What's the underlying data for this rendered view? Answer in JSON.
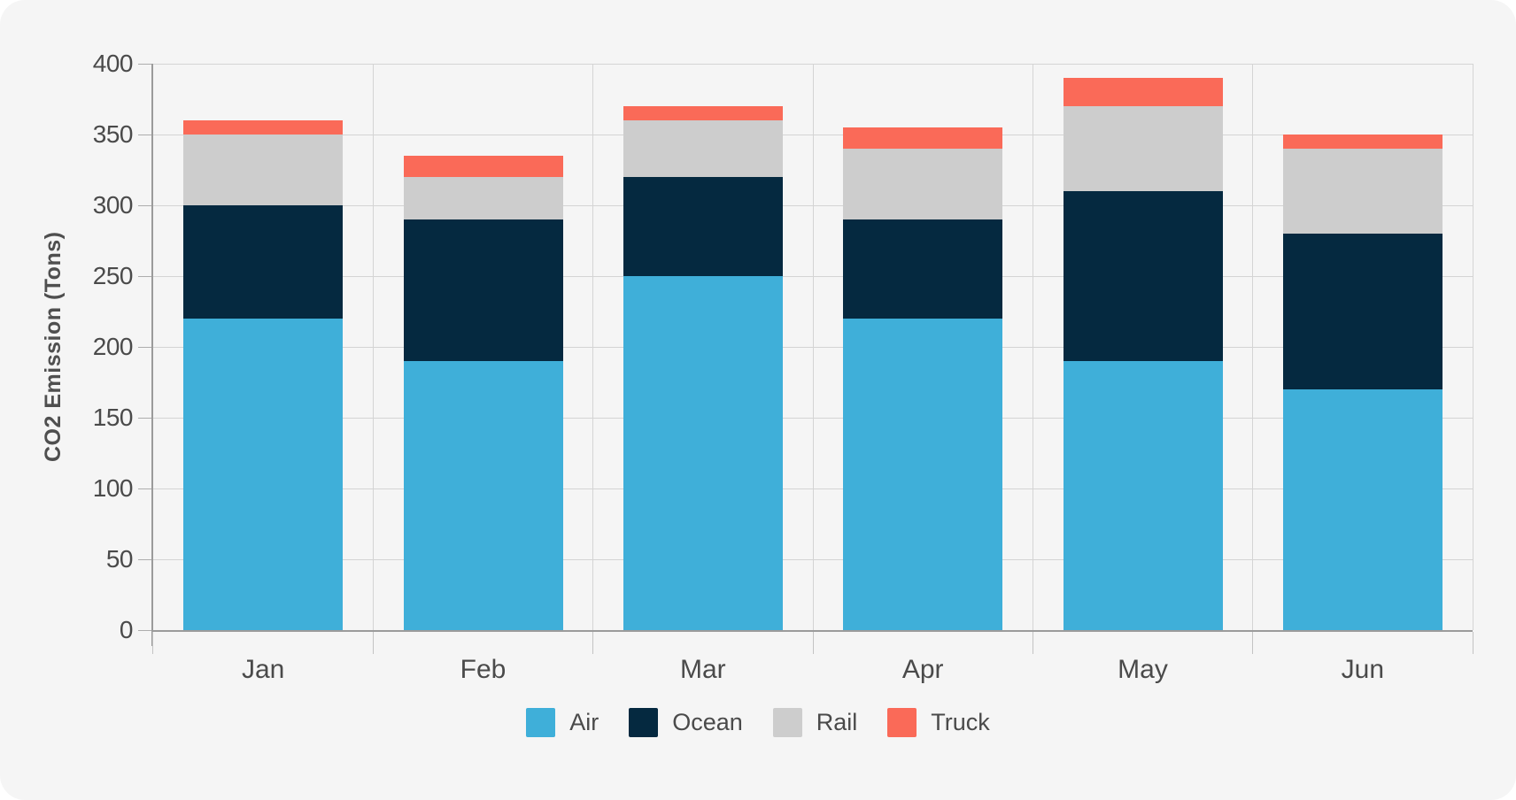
{
  "page": {
    "background": "#ffffff",
    "panel_background": "#f5f5f5",
    "gridline_color": "#d4d4d4",
    "axis_color": "#9b9b9b",
    "text_color": "#4a4a4a"
  },
  "chart_data": {
    "type": "bar",
    "stacked": true,
    "title": "",
    "xlabel": "",
    "ylabel": "CO2 Emission (Tons)",
    "categories": [
      "Jan",
      "Feb",
      "Mar",
      "Apr",
      "May",
      "Jun"
    ],
    "series": [
      {
        "name": "Air",
        "color": "#3fafd9",
        "values": [
          220,
          190,
          250,
          220,
          190,
          170
        ]
      },
      {
        "name": "Ocean",
        "color": "#052940",
        "values": [
          80,
          100,
          70,
          70,
          120,
          110
        ]
      },
      {
        "name": "Rail",
        "color": "#cdcdcd",
        "values": [
          50,
          30,
          40,
          50,
          60,
          60
        ]
      },
      {
        "name": "Truck",
        "color": "#fa6a58",
        "values": [
          10,
          15,
          10,
          15,
          20,
          10
        ]
      }
    ],
    "stack_totals": [
      360,
      335,
      370,
      355,
      390,
      350
    ],
    "ylim": [
      0,
      400
    ],
    "ytick_step": 50,
    "ytick_labels": [
      "0",
      "50",
      "100",
      "150",
      "200",
      "250",
      "300",
      "350",
      "400"
    ],
    "grid": true,
    "legend_position": "bottom"
  }
}
